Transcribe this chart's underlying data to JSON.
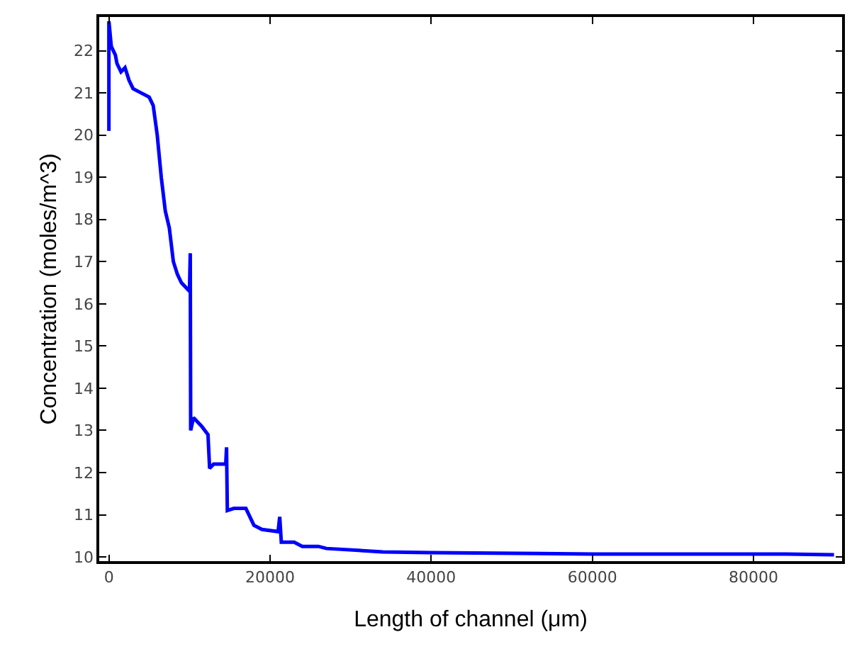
{
  "chart_data": {
    "type": "line",
    "xlabel": "Length of channel (μm)",
    "ylabel": "Concentration (moles/m^3)",
    "x": [
      0,
      0,
      300,
      800,
      1000,
      1500,
      2000,
      2500,
      3000,
      4000,
      5000,
      5500,
      6000,
      6500,
      7000,
      7500,
      8000,
      8500,
      9000,
      10000,
      10100,
      10150,
      10500,
      11500,
      12300,
      12500,
      13000,
      14500,
      14600,
      14700,
      15500,
      17000,
      18000,
      19000,
      21000,
      21200,
      21400,
      23000,
      24000,
      26000,
      27000,
      34000,
      40000,
      60000,
      84000,
      90000
    ],
    "series": [
      {
        "color": "#0000ff",
        "values": [
          20.1,
          22.7,
          22.1,
          21.9,
          21.7,
          21.5,
          21.6,
          21.3,
          21.1,
          21.0,
          20.9,
          20.7,
          20.0,
          19.0,
          18.2,
          17.8,
          17.0,
          16.7,
          16.5,
          16.3,
          17.2,
          13.0,
          13.3,
          13.1,
          12.9,
          12.1,
          12.2,
          12.2,
          12.6,
          11.1,
          11.15,
          11.15,
          10.75,
          10.65,
          10.6,
          10.95,
          10.35,
          10.35,
          10.25,
          10.25,
          10.2,
          10.12,
          10.1,
          10.07,
          10.07,
          10.05
        ]
      }
    ],
    "xlim": [
      -1200,
      91000
    ],
    "xticks": [
      0,
      20000,
      40000,
      60000,
      80000
    ],
    "ylim": [
      9.9,
      22.8
    ],
    "yticks": [
      10,
      11,
      12,
      13,
      14,
      15,
      16,
      17,
      18,
      19,
      20,
      21,
      22
    ],
    "legend": false,
    "marker": "none",
    "line_style": "solid"
  }
}
